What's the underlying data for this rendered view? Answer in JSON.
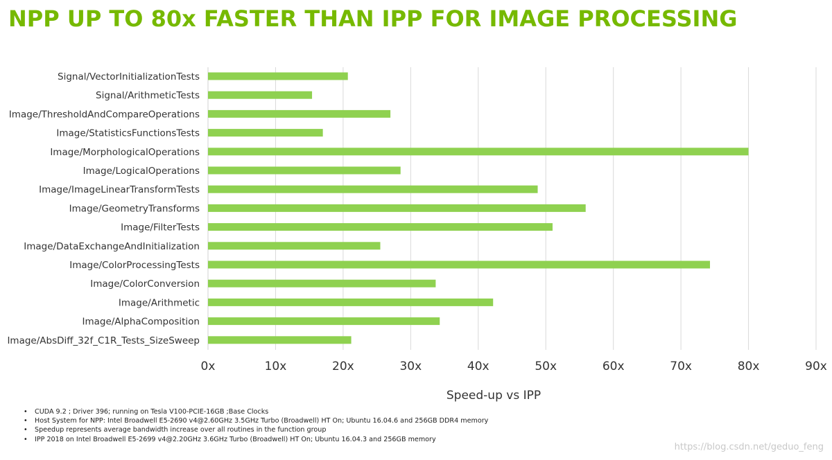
{
  "title": "NPP UP TO 80x FASTER THAN IPP FOR IMAGE PROCESSING",
  "chart_data": {
    "type": "bar",
    "orientation": "horizontal",
    "categories": [
      "Signal/VectorInitializationTests",
      "Signal/ArithmeticTests",
      "Image/ThresholdAndCompareOperations",
      "Image/StatisticsFunctionsTests",
      "Image/MorphologicalOperations",
      "Image/LogicalOperations",
      "Image/ImageLinearTransformTests",
      "Image/GeometryTransforms",
      "Image/FilterTests",
      "Image/DataExchangeAndInitialization",
      "Image/ColorProcessingTests",
      "Image/ColorConversion",
      "Image/Arithmetic",
      "Image/AlphaComposition",
      "Image/AbsDiff_32f_C1R_Tests_SizeSweep"
    ],
    "values": [
      20.7,
      15.4,
      27.0,
      17.0,
      80.0,
      28.5,
      48.8,
      55.9,
      51.0,
      25.5,
      74.3,
      33.7,
      42.2,
      34.3,
      21.2
    ],
    "xlim": [
      0,
      90
    ],
    "xticks": [
      "0x",
      "10x",
      "20x",
      "30x",
      "40x",
      "50x",
      "60x",
      "70x",
      "80x",
      "90x"
    ],
    "xtick_values": [
      0,
      10,
      20,
      30,
      40,
      50,
      60,
      70,
      80,
      90
    ],
    "xlabel": "Speed-up vs IPP",
    "ylabel": "",
    "grid": "vertical",
    "legend": "none",
    "bar_color": "#8fd150"
  },
  "footnotes": [
    "CUDA 9.2 ; Driver 396; running on Tesla V100-PCIE-16GB ;Base Clocks",
    "Host System for NPP: Intel Broadwell E5-2690 v4@2.60GHz 3.5GHz Turbo (Broadwell) HT On; Ubuntu 16.04.6 and 256GB DDR4 memory",
    "Speedup represents average bandwidth increase over all routines in the function group",
    "IPP 2018 on Intel Broadwell E5-2699 v4@2.20GHz 3.6GHz Turbo (Broadwell) HT On; Ubuntu 16.04.3 and 256GB memory"
  ],
  "watermark": "https://blog.csdn.net/geduo_feng",
  "colors": {
    "title": "#76b900",
    "bar": "#8fd150",
    "grid": "#d9d9d9"
  }
}
